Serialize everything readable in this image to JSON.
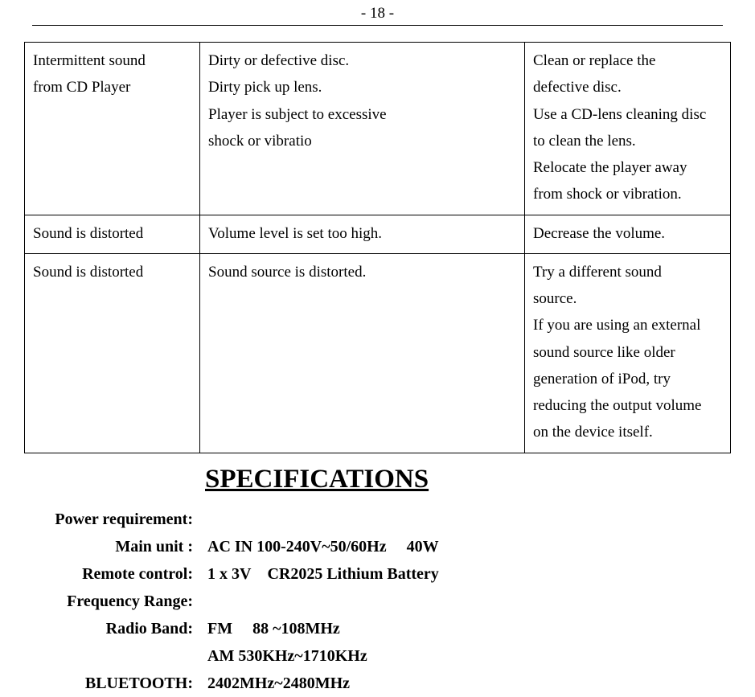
{
  "page_number": "- 18 -",
  "troubleshoot_table": {
    "rows": [
      {
        "symptom": [
          "Intermittent sound",
          "from CD Player"
        ],
        "cause": [
          "Dirty or defective disc.",
          "Dirty pick up lens.",
          "Player is subject to excessive",
          "shock or vibratio"
        ],
        "solution": [
          "Clean or replace the",
          "defective disc.",
          "Use a CD-lens cleaning disc",
          "to clean the lens.",
          "Relocate the player away",
          "from shock or vibration."
        ]
      },
      {
        "symptom": [
          "Sound is distorted"
        ],
        "cause": [
          "Volume level is set too high."
        ],
        "solution": [
          "Decrease the volume."
        ]
      },
      {
        "symptom": [
          "Sound is distorted"
        ],
        "cause": [
          "Sound source is distorted."
        ],
        "solution": [
          "Try a different sound",
          "source.",
          "If you are using an external",
          "sound source like older",
          "generation of iPod, try",
          "reducing the output volume",
          "on the device itself."
        ]
      }
    ]
  },
  "spec_heading": "SPECIFICATIONS",
  "specs": [
    {
      "label": "Power requirement:",
      "value": ""
    },
    {
      "label": "Main unit :",
      "value": "AC IN 100-240V~50/60Hz  40W"
    },
    {
      "label": "Remote control:",
      "value": "1 x 3V CR2025 Lithium Battery"
    },
    {
      "label": "Frequency Range:",
      "value": ""
    },
    {
      "label": "Radio Band:",
      "value": "FM  88 ~108MHz"
    },
    {
      "label": "",
      "value": " AM 530KHz~1710KHz"
    },
    {
      "label": "BLUETOOTH:",
      "value": " 2402MHz~2480MHz"
    }
  ]
}
